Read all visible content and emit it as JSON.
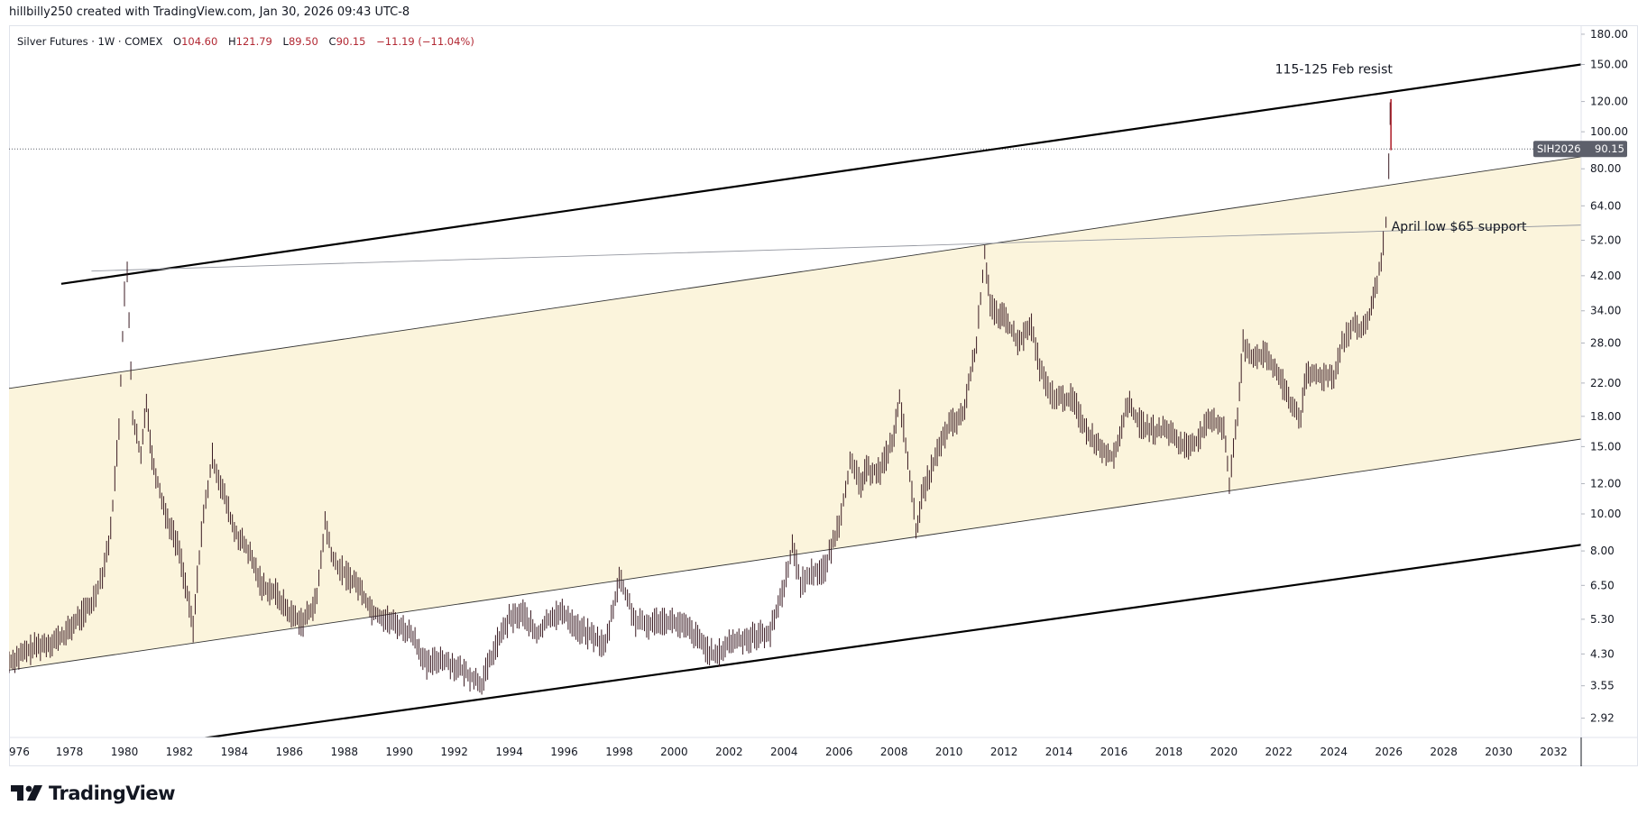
{
  "header": {
    "attribution": "hillbilly250 created with TradingView.com, Jan 30, 2026 09:43 UTC-8"
  },
  "legend": {
    "symbol": "Silver Futures · 1W · COMEX",
    "o_label": "O",
    "o_value": "104.60",
    "h_label": "H",
    "h_value": "121.79",
    "l_label": "L",
    "l_value": "89.50",
    "c_label": "C",
    "c_value": "90.15",
    "change": "−11.19 (−11.04%)"
  },
  "price_tag": {
    "symbol": "SIH2026",
    "value": "90.15"
  },
  "annotations": {
    "resist": "115-125 Feb resist",
    "support": "April low $65 support"
  },
  "footer": {
    "brand": "TradingView"
  },
  "colors": {
    "channel_fill": "#fbf4dc",
    "candle": "#3a1a22",
    "price_tag_bg": "#5d606b",
    "accent_up": "#089981",
    "accent_down": "#b22833"
  },
  "chart_data": {
    "type": "line",
    "title": "Silver Futures · 1W · COMEX",
    "scale": "log",
    "ylim": [
      2.6,
      190
    ],
    "xlim": [
      1975.8,
      2033.0
    ],
    "y_ticks": [
      "180.00",
      "150.00",
      "120.00",
      "100.00",
      "80.00",
      "64.00",
      "52.00",
      "42.00",
      "34.00",
      "28.00",
      "22.00",
      "18.00",
      "15.00",
      "12.00",
      "10.00",
      "8.00",
      "6.50",
      "5.30",
      "4.30",
      "3.55",
      "2.92"
    ],
    "x_ticks": [
      "976",
      "1978",
      "1980",
      "1982",
      "1984",
      "1986",
      "1988",
      "1990",
      "1992",
      "1994",
      "1996",
      "1998",
      "2000",
      "2002",
      "2004",
      "2006",
      "2008",
      "2010",
      "2012",
      "2014",
      "2016",
      "2018",
      "2020",
      "2022",
      "2024",
      "2026",
      "2028",
      "2030",
      "2032"
    ],
    "last_price": 90.15,
    "series": [
      {
        "values": [
          [
            1975.8,
            4.1
          ],
          [
            1976.3,
            4.3
          ],
          [
            1976.8,
            4.5
          ],
          [
            1977.3,
            4.6
          ],
          [
            1977.8,
            4.8
          ],
          [
            1978.3,
            5.3
          ],
          [
            1978.8,
            5.8
          ],
          [
            1979.2,
            7.0
          ],
          [
            1979.5,
            9.0
          ],
          [
            1979.8,
            17.0
          ],
          [
            1980.0,
            38.0
          ],
          [
            1980.1,
            42.0
          ],
          [
            1980.3,
            18.0
          ],
          [
            1980.6,
            14.0
          ],
          [
            1980.8,
            20.0
          ],
          [
            1981.0,
            14.0
          ],
          [
            1981.5,
            10.0
          ],
          [
            1982.0,
            8.0
          ],
          [
            1982.5,
            5.0
          ],
          [
            1982.8,
            9.0
          ],
          [
            1983.2,
            14.0
          ],
          [
            1983.5,
            12.0
          ],
          [
            1984.0,
            9.0
          ],
          [
            1984.5,
            8.0
          ],
          [
            1985.0,
            6.5
          ],
          [
            1985.5,
            6.2
          ],
          [
            1986.0,
            5.5
          ],
          [
            1986.5,
            5.2
          ],
          [
            1987.0,
            6.0
          ],
          [
            1987.3,
            9.5
          ],
          [
            1987.6,
            7.5
          ],
          [
            1988.0,
            7.0
          ],
          [
            1988.5,
            6.5
          ],
          [
            1989.0,
            5.6
          ],
          [
            1989.5,
            5.3
          ],
          [
            1990.0,
            5.1
          ],
          [
            1990.5,
            4.8
          ],
          [
            1991.0,
            4.0
          ],
          [
            1991.5,
            4.2
          ],
          [
            1992.0,
            4.0
          ],
          [
            1992.5,
            3.8
          ],
          [
            1993.0,
            3.6
          ],
          [
            1993.5,
            4.5
          ],
          [
            1994.0,
            5.3
          ],
          [
            1994.5,
            5.5
          ],
          [
            1995.0,
            4.8
          ],
          [
            1995.5,
            5.4
          ],
          [
            1996.0,
            5.5
          ],
          [
            1996.5,
            5.0
          ],
          [
            1997.0,
            4.8
          ],
          [
            1997.5,
            4.5
          ],
          [
            1998.0,
            6.8
          ],
          [
            1998.3,
            6.0
          ],
          [
            1998.6,
            5.2
          ],
          [
            1999.0,
            5.1
          ],
          [
            1999.5,
            5.3
          ],
          [
            2000.0,
            5.2
          ],
          [
            2000.5,
            5.0
          ],
          [
            2001.0,
            4.6
          ],
          [
            2001.5,
            4.2
          ],
          [
            2002.0,
            4.6
          ],
          [
            2002.5,
            4.7
          ],
          [
            2003.0,
            4.8
          ],
          [
            2003.5,
            4.9
          ],
          [
            2004.0,
            6.5
          ],
          [
            2004.3,
            8.2
          ],
          [
            2004.6,
            6.6
          ],
          [
            2005.0,
            7.0
          ],
          [
            2005.5,
            7.2
          ],
          [
            2006.0,
            9.5
          ],
          [
            2006.4,
            13.5
          ],
          [
            2006.8,
            12.0
          ],
          [
            2007.0,
            13.0
          ],
          [
            2007.5,
            13.0
          ],
          [
            2008.0,
            16.0
          ],
          [
            2008.2,
            20.0
          ],
          [
            2008.5,
            14.0
          ],
          [
            2008.8,
            9.0
          ],
          [
            2009.0,
            11.0
          ],
          [
            2009.5,
            14.0
          ],
          [
            2010.0,
            17.0
          ],
          [
            2010.5,
            18.0
          ],
          [
            2011.0,
            28.0
          ],
          [
            2011.3,
            48.0
          ],
          [
            2011.5,
            36.0
          ],
          [
            2011.8,
            32.0
          ],
          [
            2012.0,
            33.0
          ],
          [
            2012.5,
            28.0
          ],
          [
            2013.0,
            31.0
          ],
          [
            2013.3,
            24.0
          ],
          [
            2013.6,
            21.0
          ],
          [
            2014.0,
            20.0
          ],
          [
            2014.5,
            20.0
          ],
          [
            2015.0,
            16.5
          ],
          [
            2015.5,
            15.0
          ],
          [
            2016.0,
            14.0
          ],
          [
            2016.5,
            19.5
          ],
          [
            2017.0,
            17.0
          ],
          [
            2017.5,
            16.5
          ],
          [
            2018.0,
            16.5
          ],
          [
            2018.5,
            15.0
          ],
          [
            2019.0,
            15.5
          ],
          [
            2019.5,
            17.5
          ],
          [
            2020.0,
            17.0
          ],
          [
            2020.2,
            12.0
          ],
          [
            2020.5,
            18.0
          ],
          [
            2020.7,
            28.0
          ],
          [
            2021.0,
            26.0
          ],
          [
            2021.5,
            26.0
          ],
          [
            2022.0,
            23.0
          ],
          [
            2022.5,
            19.0
          ],
          [
            2022.8,
            18.0
          ],
          [
            2023.0,
            23.0
          ],
          [
            2023.5,
            23.0
          ],
          [
            2024.0,
            23.0
          ],
          [
            2024.3,
            28.0
          ],
          [
            2024.7,
            31.0
          ],
          [
            2025.0,
            30.0
          ],
          [
            2025.3,
            33.0
          ],
          [
            2025.5,
            38.0
          ],
          [
            2025.8,
            50.0
          ],
          [
            2025.9,
            58.0
          ],
          [
            2026.0,
            80.0
          ],
          [
            2026.05,
            110.0
          ],
          [
            2026.08,
            90.15
          ]
        ]
      }
    ],
    "channels": {
      "outer_upper": {
        "p1": [
          1977.7,
          40.0
        ],
        "p2": [
          2033.0,
          150.0
        ]
      },
      "inner_upper": {
        "p1": [
          1975.8,
          21.3
        ],
        "p2": [
          2033.0,
          86.0
        ]
      },
      "inner_lower": {
        "p1": [
          1975.8,
          3.9
        ],
        "p2": [
          2033.0,
          15.7
        ]
      },
      "outer_lower": {
        "p1": [
          1980.5,
          2.45
        ],
        "p2": [
          2033.0,
          8.3
        ]
      },
      "support_line": {
        "p1": [
          1978.8,
          43.2
        ],
        "p2": [
          2033.0,
          57.0
        ]
      }
    },
    "annotation_points": {
      "resist": [
        2024.0,
        142.0
      ],
      "support": [
        2026.1,
        55.0
      ]
    }
  }
}
